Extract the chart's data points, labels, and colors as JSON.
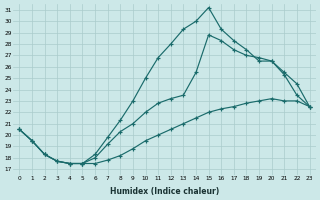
{
  "xlabel": "Humidex (Indice chaleur)",
  "xlim": [
    -0.5,
    23.5
  ],
  "ylim": [
    16.5,
    31.5
  ],
  "xticks": [
    0,
    1,
    2,
    3,
    4,
    5,
    6,
    7,
    8,
    9,
    10,
    11,
    12,
    13,
    14,
    15,
    16,
    17,
    18,
    19,
    20,
    21,
    22,
    23
  ],
  "yticks": [
    17,
    18,
    19,
    20,
    21,
    22,
    23,
    24,
    25,
    26,
    27,
    28,
    29,
    30,
    31
  ],
  "bg_color": "#cce8e8",
  "line_color": "#1a6b6b",
  "grid_color": "#aacccc",
  "line1_x": [
    0,
    1,
    2,
    3,
    4,
    5,
    6,
    7,
    8,
    9,
    10,
    11,
    12,
    13,
    14,
    15,
    16,
    17,
    18,
    19,
    20,
    21,
    22,
    23
  ],
  "line1_y": [
    20.5,
    19.5,
    18.3,
    17.7,
    17.5,
    17.5,
    18.3,
    19.8,
    21.3,
    23.0,
    25.0,
    26.8,
    28.0,
    29.3,
    30.0,
    31.2,
    29.3,
    28.3,
    27.5,
    26.5,
    26.5,
    25.5,
    24.5,
    22.5
  ],
  "line2_x": [
    0,
    1,
    2,
    3,
    4,
    5,
    6,
    7,
    8,
    9,
    10,
    11,
    12,
    13,
    14,
    15,
    16,
    17,
    18,
    19,
    20,
    21,
    22,
    23
  ],
  "line2_y": [
    20.5,
    19.5,
    18.3,
    17.7,
    17.5,
    17.5,
    18.0,
    19.2,
    20.3,
    21.0,
    22.0,
    22.8,
    23.2,
    23.5,
    25.5,
    28.8,
    28.3,
    27.5,
    27.0,
    26.8,
    26.5,
    25.3,
    23.5,
    22.5
  ],
  "line3_x": [
    0,
    1,
    2,
    3,
    4,
    5,
    6,
    7,
    8,
    9,
    10,
    11,
    12,
    13,
    14,
    15,
    16,
    17,
    18,
    19,
    20,
    21,
    22,
    23
  ],
  "line3_y": [
    20.5,
    19.5,
    18.3,
    17.7,
    17.5,
    17.5,
    17.5,
    17.8,
    18.2,
    18.8,
    19.5,
    20.0,
    20.5,
    21.0,
    21.5,
    22.0,
    22.3,
    22.5,
    22.8,
    23.0,
    23.2,
    23.0,
    23.0,
    22.5
  ]
}
